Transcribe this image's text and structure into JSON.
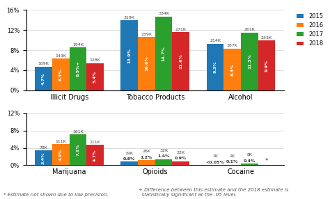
{
  "chart_data": [
    {
      "type": "bar",
      "categories": [
        "Illicit Drugs",
        "Tobacco Products",
        "Alcohol"
      ],
      "series": [
        {
          "name": "2015",
          "values": [
            4.7,
            13.9,
            9.3
          ],
          "value_labels": [
            "4.7%",
            "13.9%",
            "9.3%"
          ],
          "count_labels": [
            "109K",
            "319K",
            "214K"
          ]
        },
        {
          "name": "2016",
          "values": [
            6.3,
            10.6,
            8.3
          ],
          "value_labels": [
            "6.3%",
            "10.6%",
            "8.3%"
          ],
          "count_labels": [
            "143K",
            "239K",
            "187K"
          ]
        },
        {
          "name": "2017",
          "values": [
            8.5,
            14.7,
            11.5
          ],
          "value_labels": [
            "8.5%+",
            "14.7%",
            "11.5%"
          ],
          "count_labels": [
            "194K",
            "334K",
            "261K"
          ]
        },
        {
          "name": "2018",
          "values": [
            5.4,
            11.6,
            9.9
          ],
          "value_labels": [
            "5.4%",
            "11.6%",
            "9.9%"
          ],
          "count_labels": [
            "128K",
            "271K",
            "233K"
          ]
        }
      ],
      "ylim": [
        0,
        16
      ],
      "yticks": [
        {
          "value": 0,
          "label": "0%"
        },
        {
          "value": 4,
          "label": "4%"
        },
        {
          "value": 8,
          "label": "8%"
        },
        {
          "value": 12,
          "label": "12%"
        },
        {
          "value": 16,
          "label": "16%"
        }
      ],
      "grid": true,
      "data_labels": true,
      "legend": "upper right"
    },
    {
      "type": "bar",
      "categories": [
        "Marijuana",
        "Opioids",
        "Cocaine"
      ],
      "series": [
        {
          "name": "2015",
          "values": [
            3.4,
            0.8,
            0.05
          ],
          "value_labels": [
            "3.4%",
            "0.8%",
            "<0.05%"
          ],
          "count_labels": [
            "78K",
            "19K",
            "1K"
          ]
        },
        {
          "name": "2016",
          "values": [
            4.9,
            1.2,
            0.1
          ],
          "value_labels": [
            "4.9%",
            "1.2%",
            "0.1%"
          ],
          "count_labels": [
            "111K",
            "26K",
            "2K"
          ]
        },
        {
          "name": "2017",
          "values": [
            7.1,
            1.4,
            0.4
          ],
          "value_labels": [
            "7.1%",
            "1.4%",
            "0.4%"
          ],
          "count_labels": [
            "161K",
            "32K",
            "8K"
          ]
        },
        {
          "name": "2018",
          "values": [
            4.7,
            0.9,
            null
          ],
          "value_labels": [
            "4.7%",
            "0.9%",
            "*"
          ],
          "count_labels": [
            "111K",
            "22K",
            null
          ]
        }
      ],
      "ylim": [
        0,
        12
      ],
      "yticks": [
        {
          "value": 0,
          "label": "0%"
        },
        {
          "value": 4,
          "label": "4%"
        },
        {
          "value": 8,
          "label": "8%"
        },
        {
          "value": 12,
          "label": "12%"
        }
      ],
      "grid": true,
      "data_labels": true,
      "annotations": [
        "* Estimate not shown due to low precision.",
        "+ Difference between this estimate and the 2018 estimate is\n  statistically significant at the .05 level."
      ]
    }
  ]
}
